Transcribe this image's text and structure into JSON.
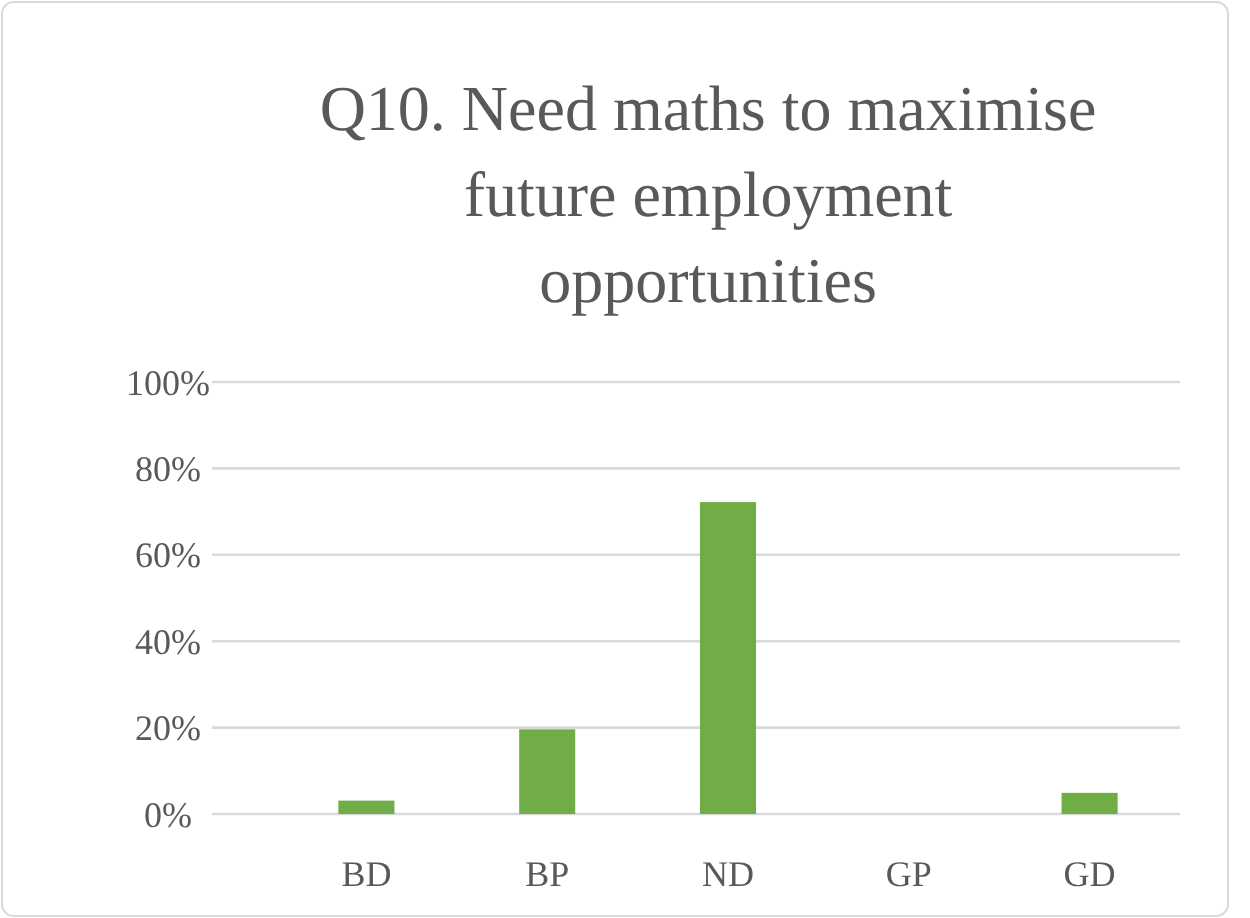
{
  "chart_data": {
    "type": "bar",
    "title": "Q10. Need maths to maximise future employment opportunities",
    "categories": [
      "BD",
      "BP",
      "ND",
      "GP",
      "GD"
    ],
    "values": [
      0.031,
      0.196,
      0.722,
      0,
      0.049
    ],
    "color": "#70ad47",
    "ylim": [
      0,
      1
    ],
    "yticks": [
      {
        "value": 0,
        "label": "0%"
      },
      {
        "value": 0.2,
        "label": "20%"
      },
      {
        "value": 0.4,
        "label": "40%"
      },
      {
        "value": 0.6,
        "label": "60%"
      },
      {
        "value": 0.8,
        "label": "80%"
      },
      {
        "value": 1,
        "label": "100%"
      }
    ],
    "grid": "y"
  }
}
